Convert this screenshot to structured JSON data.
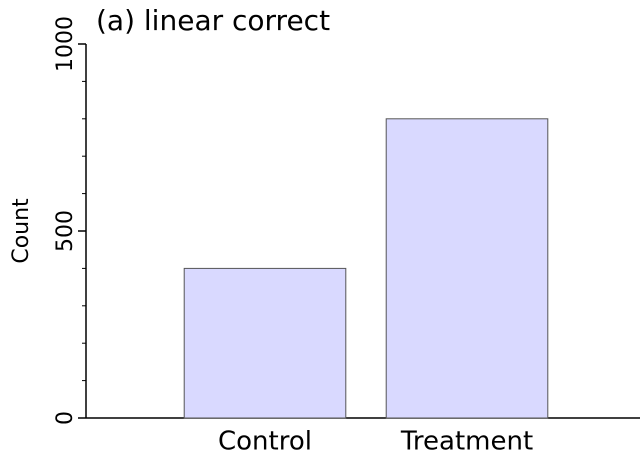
{
  "chart_data": {
    "type": "bar",
    "title": "(a) linear correct",
    "y_label": "Count",
    "categories": [
      "Control",
      "Treatment"
    ],
    "values": [
      400,
      800
    ],
    "color": "#d9d9ff",
    "ylim": [
      0,
      1000
    ],
    "yticks": [
      0,
      500,
      1000
    ],
    "yminorticks": [
      100,
      200,
      300,
      400,
      600,
      700,
      800,
      900
    ]
  }
}
